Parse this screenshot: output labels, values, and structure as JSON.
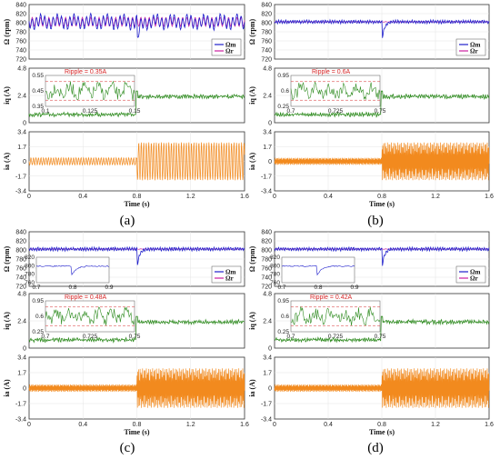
{
  "chart_data": [
    {
      "panel": "(a)",
      "type": "line",
      "xlabel": "Time (s)",
      "xticks": [
        "0",
        "0.4",
        "0.8",
        "1.2",
        "1.6"
      ],
      "subplots": [
        {
          "ylabel": "Ω (rpm)",
          "yticks": [
            "840",
            "820",
            "800",
            "780",
            "760",
            "740",
            "720"
          ],
          "ylim": [
            720,
            840
          ],
          "series": [
            {
              "name": "Ωm",
              "color": "#1f1fcc"
            },
            {
              "name": "Ωr",
              "color": "#cc1fa0"
            }
          ],
          "legend": [
            "Ωm",
            "Ωr"
          ]
        },
        {
          "ylabel": "iq (A)",
          "yticks": [
            "4.8",
            "2.4",
            "0"
          ],
          "ylim": [
            0,
            4.8
          ],
          "series": [
            {
              "name": "iq",
              "color": "#2e8b1f"
            }
          ],
          "inset": {
            "annotation": "Ripple = 0.35A",
            "yticks": [
              "0.55",
              "0.45",
              "0.35"
            ],
            "xticks": [
              "0.1",
              "0.125",
              "0.15"
            ]
          }
        },
        {
          "ylabel": "ia (A)",
          "yticks": [
            "3.4",
            "1.7",
            "0",
            "-1.7",
            "-3.4"
          ],
          "ylim": [
            -3.4,
            3.4
          ],
          "series": [
            {
              "name": "ia",
              "color": "#f28a1e"
            }
          ]
        }
      ]
    },
    {
      "panel": "(b)",
      "type": "line",
      "xlabel": "Time (s)",
      "xticks": [
        "0",
        "0.4",
        "0.8",
        "1.2",
        "1.6"
      ],
      "subplots": [
        {
          "ylabel": "Ω (rpm)",
          "yticks": [
            "840",
            "820",
            "800",
            "780",
            "760",
            "740",
            "720"
          ],
          "ylim": [
            720,
            840
          ],
          "series": [
            {
              "name": "Ωm",
              "color": "#1f1fcc"
            },
            {
              "name": "Ωr",
              "color": "#cc1fa0"
            }
          ],
          "legend": [
            "Ωm",
            "Ωr"
          ]
        },
        {
          "ylabel": "iq (A)",
          "yticks": [
            "4.8",
            "2.4",
            "0"
          ],
          "ylim": [
            0,
            4.8
          ],
          "series": [
            {
              "name": "iq",
              "color": "#2e8b1f"
            }
          ],
          "inset": {
            "annotation": "Ripple = 0.6A",
            "yticks": [
              "0.95",
              "0.6",
              "0.25"
            ],
            "xticks": [
              "0.7",
              "0.725",
              "0.75"
            ]
          }
        },
        {
          "ylabel": "ia (A)",
          "yticks": [
            "3.4",
            "1.7",
            "0",
            "-1.7",
            "-3.4"
          ],
          "ylim": [
            -3.4,
            3.4
          ],
          "series": [
            {
              "name": "ia",
              "color": "#f28a1e"
            }
          ]
        }
      ]
    },
    {
      "panel": "(c)",
      "type": "line",
      "xlabel": "Time (s)",
      "xticks": [
        "0",
        "0.4",
        "0.8",
        "1.2",
        "1.6"
      ],
      "subplots": [
        {
          "ylabel": "Ω (rpm)",
          "yticks": [
            "840",
            "820",
            "800",
            "780",
            "760",
            "740",
            "720"
          ],
          "ylim": [
            720,
            840
          ],
          "series": [
            {
              "name": "Ωm",
              "color": "#1f1fcc"
            },
            {
              "name": "Ωr",
              "color": "#cc1fa0"
            }
          ],
          "legend": [
            "Ωm",
            "Ωr"
          ],
          "inset": {
            "yticks": [
              "820",
              "800",
              "780",
              "760"
            ],
            "xticks": [
              "0.7",
              "0.8",
              "0.9"
            ]
          }
        },
        {
          "ylabel": "iq (A)",
          "yticks": [
            "4.8",
            "2.4",
            "0"
          ],
          "ylim": [
            0,
            4.8
          ],
          "series": [
            {
              "name": "iq",
              "color": "#2e8b1f"
            }
          ],
          "inset": {
            "annotation": "Ripple = 0.48A",
            "yticks": [
              "0.95",
              "0.6",
              "0.25"
            ],
            "xticks": [
              "0.7",
              "0.725",
              "0.75"
            ]
          }
        },
        {
          "ylabel": "ia (A)",
          "yticks": [
            "3.4",
            "1.7",
            "0",
            "-1.7",
            "-3.4"
          ],
          "ylim": [
            -3.4,
            3.4
          ],
          "series": [
            {
              "name": "ia",
              "color": "#f28a1e"
            }
          ]
        }
      ]
    },
    {
      "panel": "(d)",
      "type": "line",
      "xlabel": "Time (s)",
      "xticks": [
        "0",
        "0.4",
        "0.8",
        "1.2",
        "1.6"
      ],
      "subplots": [
        {
          "ylabel": "Ω (rpm)",
          "yticks": [
            "840",
            "820",
            "800",
            "780",
            "760",
            "740",
            "720"
          ],
          "ylim": [
            720,
            840
          ],
          "series": [
            {
              "name": "Ωm",
              "color": "#1f1fcc"
            },
            {
              "name": "Ωr",
              "color": "#cc1fa0"
            }
          ],
          "legend": [
            "Ωm",
            "Ωr"
          ],
          "inset": {
            "yticks": [
              "820",
              "800",
              "780",
              "760"
            ],
            "xticks": [
              "0.7",
              "0.8",
              "0.9"
            ]
          }
        },
        {
          "ylabel": "iq (A)",
          "yticks": [
            "4.8",
            "2.4",
            "0"
          ],
          "ylim": [
            0,
            4.8
          ],
          "series": [
            {
              "name": "iq",
              "color": "#2e8b1f"
            }
          ],
          "inset": {
            "annotation": "Ripple = 0.42A",
            "yticks": [
              "0.95",
              "0.6",
              "0.25"
            ],
            "xticks": [
              "0.7",
              "0.725",
              "0.75"
            ]
          }
        },
        {
          "ylabel": "ia (A)",
          "yticks": [
            "3.4",
            "1.7",
            "0",
            "-1.7",
            "-3.4"
          ],
          "ylim": [
            -3.4,
            3.4
          ],
          "series": [
            {
              "name": "ia",
              "color": "#f28a1e"
            }
          ]
        }
      ]
    }
  ]
}
